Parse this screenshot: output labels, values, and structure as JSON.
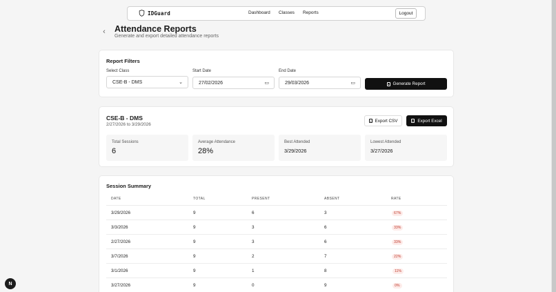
{
  "navbar": {
    "brand": "IDGuard",
    "links": [
      "Dashboard",
      "Classes",
      "Reports"
    ],
    "logout_label": "Logout"
  },
  "header": {
    "back_glyph": "‹",
    "title": "Attendance Reports",
    "subtitle": "Generate and export detailed attendance reports"
  },
  "filters": {
    "heading": "Report Filters",
    "class_label": "Select Class",
    "class_value": "CSE-B - DMS",
    "start_label": "Start Date",
    "start_value": "27/02/2026",
    "end_label": "End Date",
    "end_value": "29/03/2026",
    "generate_label": "Generate Report"
  },
  "report": {
    "class_title": "CSE-B - DMS",
    "date_range": "2/27/2026 to 3/29/2026",
    "export_csv_label": "Export CSV",
    "export_excel_label": "Export Excel",
    "stats": [
      {
        "label": "Total Sessions",
        "value": "6"
      },
      {
        "label": "Average Attendance",
        "value": "28%"
      },
      {
        "label": "Best Attended",
        "value": "3/29/2026"
      },
      {
        "label": "Lowest Attended",
        "value": "3/27/2026"
      }
    ]
  },
  "summary": {
    "heading": "Session Summary",
    "columns": [
      "DATE",
      "TOTAL",
      "PRESENT",
      "ABSENT",
      "RATE"
    ],
    "rows": [
      {
        "date": "3/29/2026",
        "total": "9",
        "present": "6",
        "absent": "3",
        "rate": "67%"
      },
      {
        "date": "3/3/2026",
        "total": "9",
        "present": "3",
        "absent": "6",
        "rate": "33%"
      },
      {
        "date": "2/27/2026",
        "total": "9",
        "present": "3",
        "absent": "6",
        "rate": "33%"
      },
      {
        "date": "3/7/2026",
        "total": "9",
        "present": "2",
        "absent": "7",
        "rate": "22%"
      },
      {
        "date": "3/1/2026",
        "total": "9",
        "present": "1",
        "absent": "8",
        "rate": "11%"
      },
      {
        "date": "3/27/2026",
        "total": "9",
        "present": "0",
        "absent": "9",
        "rate": "0%"
      }
    ]
  },
  "assistant": {
    "glyph": "N"
  },
  "colors": {
    "primary_button": "#111111",
    "rate_text": "#c0392b",
    "rate_bg": "#fdecea",
    "page_bg": "#f5f5f5"
  }
}
